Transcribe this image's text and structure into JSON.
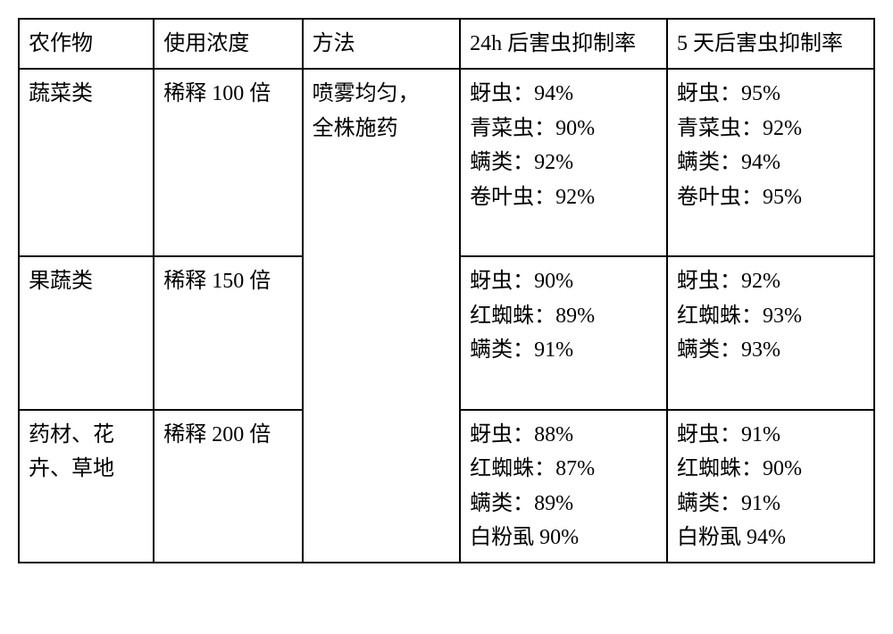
{
  "headers": {
    "crop": "农作物",
    "conc": "使用浓度",
    "method": "方法",
    "h24": "24h 后害虫抑制率",
    "d5": "5 天后害虫抑制率"
  },
  "method_text_l1": "喷雾均匀，",
  "method_text_l2": "全株施药",
  "rows": [
    {
      "crop": "蔬菜类",
      "conc": "稀释 100 倍",
      "h24": [
        "蚜虫：94%",
        "青菜虫：90%",
        "螨类：92%",
        "卷叶虫：92%"
      ],
      "d5": [
        "蚜虫：95%",
        "青菜虫：92%",
        "螨类：94%",
        "卷叶虫：95%"
      ]
    },
    {
      "crop": "果蔬类",
      "conc": "稀释 150 倍",
      "h24": [
        "蚜虫：90%",
        "红蜘蛛：89%",
        "螨类：91%"
      ],
      "d5": [
        "蚜虫：92%",
        "红蜘蛛：93%",
        "螨类：93%"
      ]
    },
    {
      "crop_l1": "药材、花",
      "crop_l2": "卉、草地",
      "conc": "稀释 200 倍",
      "h24": [
        "蚜虫：88%",
        "红蜘蛛：87%",
        "螨类：89%",
        "白粉虱 90%"
      ],
      "d5": [
        "蚜虫：91%",
        "红蜘蛛：90%",
        "螨类：91%",
        "白粉虱 94%"
      ]
    }
  ]
}
